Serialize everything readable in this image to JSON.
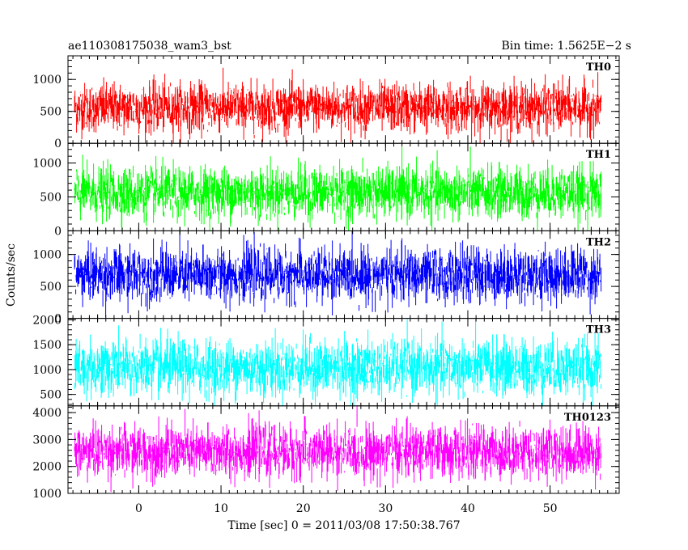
{
  "chart_data": {
    "type": "line",
    "title_left": "ae110308175038_wam3_bst",
    "title_right": "Bin time: 1.5625E−2 s",
    "xlabel": "Time [sec] 0 = 2011/03/08 17:50:38.767",
    "ylabel": "Counts/sec",
    "xlim": [
      -8.6,
      58.4
    ],
    "x_data_range": [
      -7.8,
      56.2
    ],
    "bin_time": 0.015625,
    "x_ticks": [
      0,
      10,
      20,
      30,
      40,
      50
    ],
    "x_tick_labels": [
      "0",
      "10",
      "20",
      "30",
      "40",
      "50"
    ],
    "panels": [
      {
        "name": "TH0",
        "color": "#ff0000",
        "ylim": [
          0,
          1370
        ],
        "y_ticks": [
          0,
          500,
          1000
        ],
        "y_tick_labels": [
          "0",
          "500",
          "1000"
        ],
        "mean": 560,
        "spread": 190,
        "min": 0,
        "max": 1370
      },
      {
        "name": "TH1",
        "color": "#00ff00",
        "ylim": [
          0,
          1290
        ],
        "y_ticks": [
          0,
          500,
          1000
        ],
        "y_tick_labels": [
          "0",
          "500",
          "1000"
        ],
        "mean": 560,
        "spread": 190,
        "min": 0,
        "max": 1290
      },
      {
        "name": "TH2",
        "color": "#0000ff",
        "ylim": [
          0,
          1370
        ],
        "y_ticks": [
          0,
          500,
          1000
        ],
        "y_tick_labels": [
          "0",
          "500",
          "1000"
        ],
        "mean": 680,
        "spread": 210,
        "min": 0,
        "max": 1370
      },
      {
        "name": "TH3",
        "color": "#00ffff",
        "ylim": [
          270,
          2030
        ],
        "y_ticks": [
          500,
          1000,
          1500,
          2000
        ],
        "y_tick_labels": [
          "500",
          "1000",
          "1500",
          "2000"
        ],
        "mean": 1040,
        "spread": 280,
        "min": 270,
        "max": 2030
      },
      {
        "name": "TH0123",
        "color": "#ff00ff",
        "ylim": [
          1000,
          4250
        ],
        "y_ticks": [
          1000,
          2000,
          3000,
          4000
        ],
        "y_tick_labels": [
          "1000",
          "2000",
          "3000",
          "4000"
        ],
        "mean": 2550,
        "spread": 480,
        "min": 1000,
        "max": 4250
      }
    ]
  }
}
